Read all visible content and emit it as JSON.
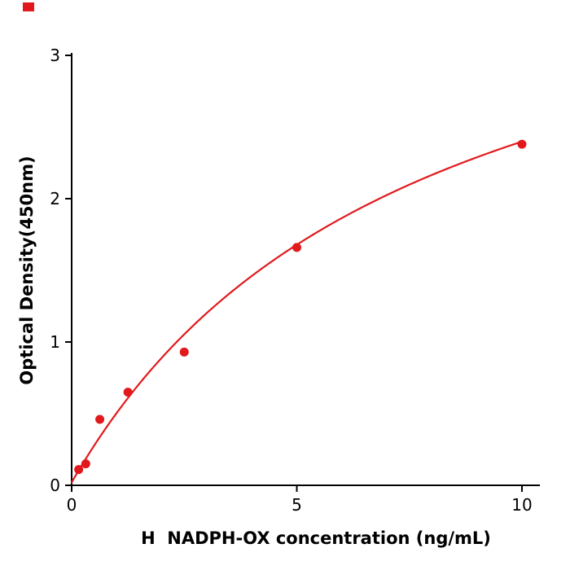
{
  "page": {
    "background": "#ffffff"
  },
  "corner_mark": {
    "color": "#e2191c"
  },
  "chart_data": {
    "type": "scatter",
    "title": "",
    "xlabel": "H  NADPH-OX concentration (ng/mL)",
    "ylabel": "Optical Density(450nm)",
    "x": [
      0.156,
      0.313,
      0.625,
      1.25,
      2.5,
      5,
      10
    ],
    "y": [
      0.11,
      0.15,
      0.46,
      0.65,
      0.93,
      1.66,
      2.38
    ],
    "x_ticks": [
      0,
      5,
      10
    ],
    "y_ticks": [
      0,
      1,
      2,
      3
    ],
    "xlim": [
      0,
      10
    ],
    "ylim": [
      0,
      3
    ],
    "grid": false,
    "legend": null,
    "point_color": "#e2191c",
    "point_radius": 5.5,
    "curve_color": "#e2191c",
    "curve_width": 2.2,
    "fit": {
      "model": "saturation curve y = c + a*x/(b+x)",
      "a": 4.2,
      "b": 7.66,
      "c": 0.02
    }
  }
}
